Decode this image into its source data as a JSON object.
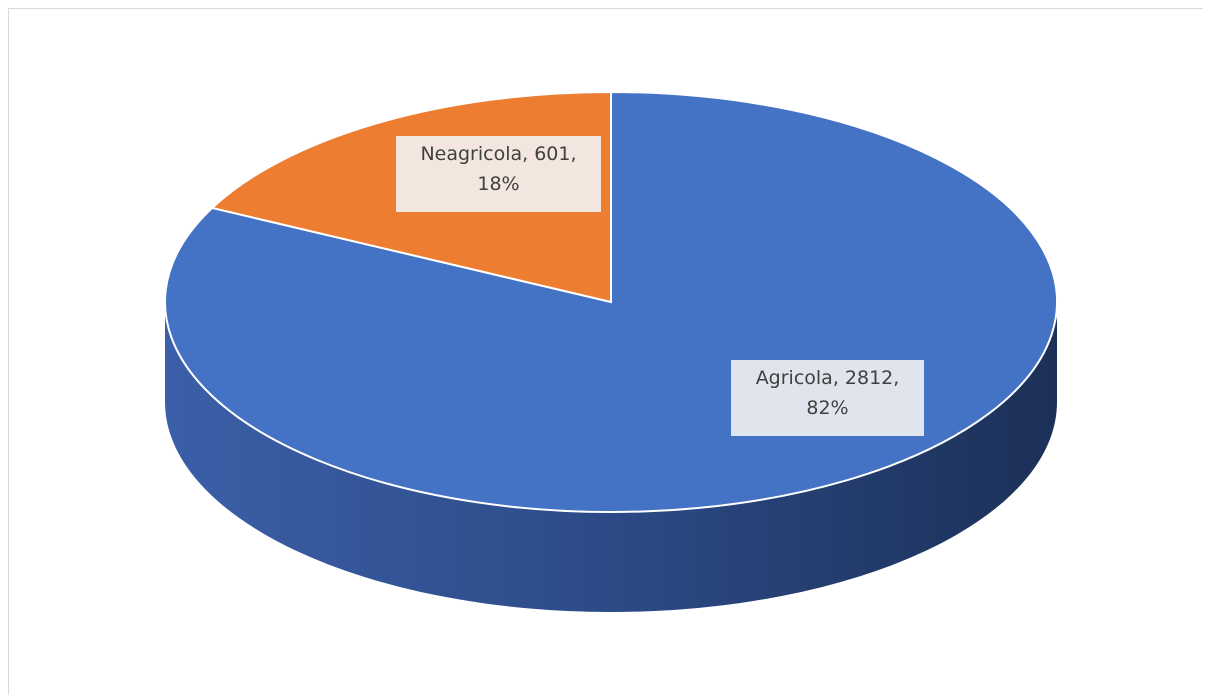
{
  "chart_data": {
    "type": "pie",
    "style": "3d",
    "categories": [
      "Agricola",
      "Neagricola"
    ],
    "values": [
      2812,
      601
    ],
    "percentages": [
      "82%",
      "18%"
    ],
    "colors": [
      "#4472C4",
      "#ED7D31"
    ],
    "data_labels": [
      {
        "line1": "Agricola, 2812,",
        "line2": "82%"
      },
      {
        "line1": "Neagricola, 601,",
        "line2": "18%"
      }
    ],
    "title": "",
    "legend": "none"
  }
}
